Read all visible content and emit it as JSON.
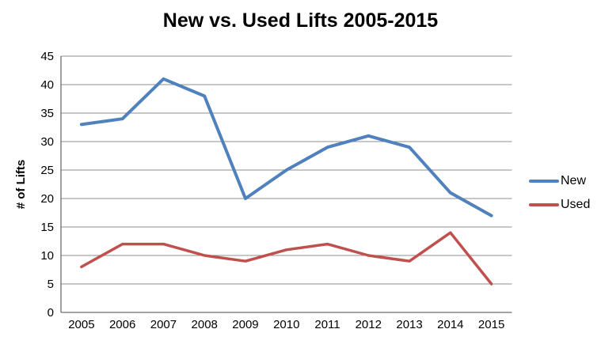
{
  "chart_data": {
    "type": "line",
    "title": "New vs. Used Lifts 2005-2015",
    "xlabel": "",
    "ylabel": "# of Lifts",
    "categories": [
      "2005",
      "2006",
      "2007",
      "2008",
      "2009",
      "2010",
      "2011",
      "2012",
      "2013",
      "2014",
      "2015"
    ],
    "series": [
      {
        "name": "New",
        "color": "#4F81BD",
        "line_width": 4,
        "values": [
          33,
          34,
          41,
          38,
          20,
          25,
          29,
          31,
          29,
          21,
          17
        ]
      },
      {
        "name": "Used",
        "color": "#C0504D",
        "line_width": 3.5,
        "values": [
          8,
          12,
          12,
          10,
          9,
          11,
          12,
          10,
          9,
          14,
          5
        ]
      }
    ],
    "ylim": [
      0,
      45
    ],
    "yticks": [
      0,
      5,
      10,
      15,
      20,
      25,
      30,
      35,
      40,
      45
    ],
    "grid": true,
    "legend_position": "right",
    "colors": {
      "gridline": "#8F8F8F",
      "axis": "#6E6E6E",
      "text": "#000000",
      "background": "#FFFFFF"
    }
  }
}
